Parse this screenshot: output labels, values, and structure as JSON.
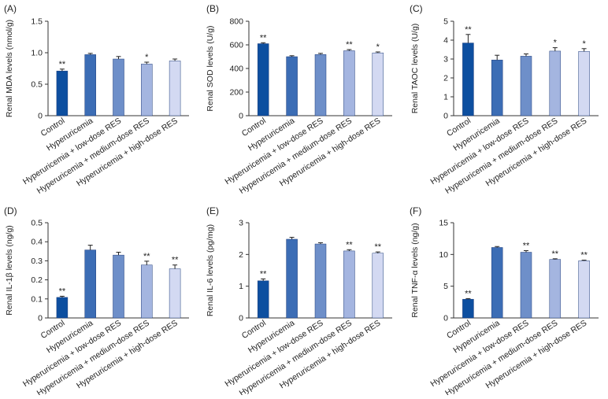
{
  "categories": [
    "Control",
    "Hyperuricemia",
    "Hyperuricemia + low-dose RES",
    "Hyperuricemia + medium-dose RES",
    "Hyperuricemia + high-dose RES"
  ],
  "colors": [
    "#0d4fa0",
    "#3c6db5",
    "#6e8fc9",
    "#a4b5e0",
    "#d3d9f2"
  ],
  "chart_data": [
    {
      "type": "bar",
      "panel": "(A)",
      "ylabel": "Renal MDA levels (nmol/g)",
      "ylim": [
        0,
        1.5
      ],
      "yticks": [
        "0",
        "0.5",
        "1.0",
        "1.5"
      ],
      "values": [
        0.71,
        0.97,
        0.9,
        0.82,
        0.87
      ],
      "errors": [
        0.03,
        0.02,
        0.04,
        0.03,
        0.03
      ],
      "significance": [
        "**",
        "",
        "",
        "*",
        ""
      ]
    },
    {
      "type": "bar",
      "panel": "(B)",
      "ylabel": "Renal SOD levels (U/g)",
      "ylim": [
        0,
        800
      ],
      "yticks": [
        "0",
        "200",
        "400",
        "600",
        "800"
      ],
      "values": [
        610,
        500,
        518,
        550,
        532
      ],
      "errors": [
        8,
        8,
        10,
        10,
        8
      ],
      "significance": [
        "**",
        "",
        "",
        "**",
        "*"
      ]
    },
    {
      "type": "bar",
      "panel": "(C)",
      "ylabel": "Renal TAOC levels (U/g)",
      "ylim": [
        0,
        5
      ],
      "yticks": [
        "0",
        "1",
        "2",
        "3",
        "4",
        "5"
      ],
      "values": [
        3.85,
        2.95,
        3.15,
        3.42,
        3.4
      ],
      "errors": [
        0.45,
        0.25,
        0.12,
        0.18,
        0.15
      ],
      "significance": [
        "**",
        "",
        "",
        "*",
        "*"
      ]
    },
    {
      "type": "bar",
      "panel": "(D)",
      "ylabel": "Renal IL-1β levels (ng/g)",
      "ylim": [
        0,
        0.5
      ],
      "yticks": [
        "0",
        "0.1",
        "0.2",
        "0.3",
        "0.4",
        "0.5"
      ],
      "values": [
        0.108,
        0.357,
        0.33,
        0.278,
        0.258
      ],
      "errors": [
        0.006,
        0.025,
        0.015,
        0.02,
        0.02
      ],
      "significance": [
        "**",
        "",
        "",
        "**",
        "**"
      ]
    },
    {
      "type": "bar",
      "panel": "(E)",
      "ylabel": "Renal IL-6 levels (pg/mg)",
      "ylim": [
        0,
        3
      ],
      "yticks": [
        "0",
        "1",
        "2",
        "3"
      ],
      "values": [
        1.17,
        2.48,
        2.33,
        2.11,
        2.04
      ],
      "errors": [
        0.06,
        0.06,
        0.04,
        0.04,
        0.04
      ],
      "significance": [
        "**",
        "",
        "",
        "**",
        "**"
      ]
    },
    {
      "type": "bar",
      "panel": "(F)",
      "ylabel": "Renal TNF-α levels (ng/g)",
      "ylim": [
        0,
        15
      ],
      "yticks": [
        "0",
        "5",
        "10",
        "15"
      ],
      "values": [
        2.95,
        11.1,
        10.35,
        9.22,
        9.0
      ],
      "errors": [
        0.1,
        0.15,
        0.25,
        0.1,
        0.1
      ],
      "significance": [
        "**",
        "",
        "**",
        "**",
        "**"
      ]
    }
  ]
}
